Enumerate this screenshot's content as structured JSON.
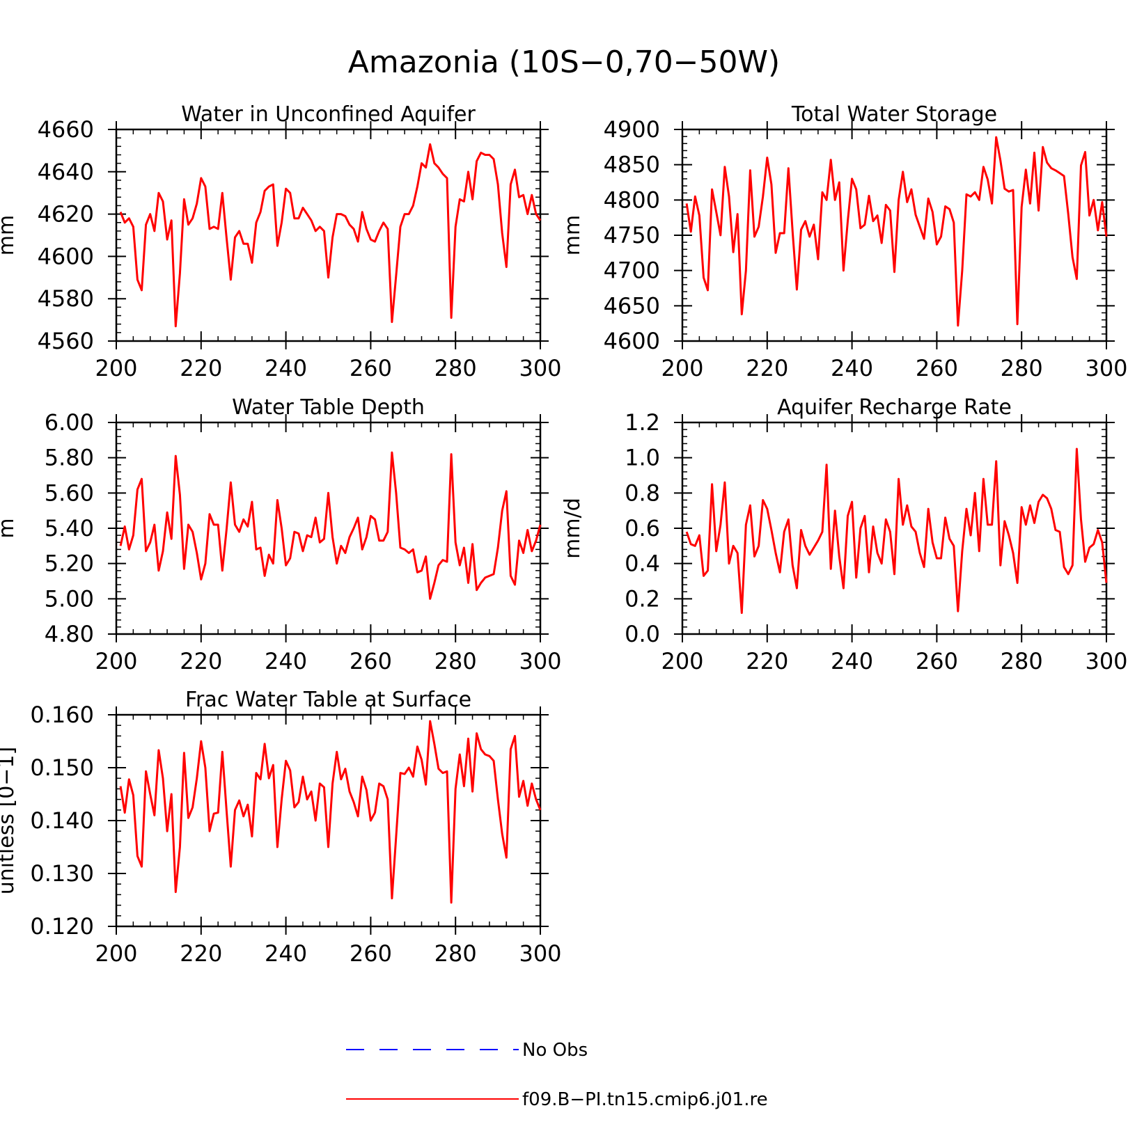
{
  "figure": {
    "title": "Amazonia (10S−0,70−50W)"
  },
  "legend": {
    "entries": [
      {
        "label": "No Obs",
        "color": "#0000ff",
        "style": "dashed"
      },
      {
        "label": "f09.B−PI.tn15.cmip6.j01.re",
        "color": "#ff0000",
        "style": "solid"
      }
    ]
  },
  "chart_data": [
    {
      "type": "line",
      "title": "Water in Unconfined Aquifer",
      "ylabel": "mm",
      "xlim": [
        200,
        300
      ],
      "ylim": [
        4560,
        4660
      ],
      "xticks": [
        200,
        220,
        240,
        260,
        280,
        300
      ],
      "yticks": [
        4560,
        4580,
        4600,
        4620,
        4640,
        4660
      ],
      "ytick_labels": [
        "4560",
        "4580",
        "4600",
        "4620",
        "4640",
        "4660"
      ],
      "series": [
        {
          "color": "#ff0000",
          "x_start": 201,
          "values": [
            4621,
            4616,
            4618,
            4614,
            4589,
            4584,
            4615,
            4620,
            4612,
            4630,
            4626,
            4608,
            4617,
            4567,
            4592,
            4627,
            4615,
            4618,
            4625,
            4637,
            4633,
            4613,
            4614,
            4613,
            4630,
            4609,
            4589,
            4609,
            4612,
            4606,
            4606,
            4597,
            4616,
            4621,
            4631,
            4633,
            4634,
            4605,
            4616,
            4632,
            4630,
            4618,
            4618,
            4623,
            4620,
            4617,
            4612,
            4614,
            4612,
            4590,
            4609,
            4620,
            4620,
            4619,
            4615,
            4613,
            4607,
            4621,
            4613,
            4608,
            4607,
            4612,
            4616,
            4613,
            4569,
            4591,
            4614,
            4620,
            4620,
            4624,
            4633,
            4644,
            4642,
            4653,
            4644,
            4642,
            4639,
            4637,
            4571,
            4614,
            4627,
            4626,
            4640,
            4627,
            4645,
            4649,
            4648,
            4648,
            4646,
            4634,
            4611,
            4595,
            4634,
            4641,
            4628,
            4629,
            4620,
            4629,
            4620,
            4617
          ]
        }
      ]
    },
    {
      "type": "line",
      "title": "Total Water Storage",
      "ylabel": "mm",
      "xlim": [
        200,
        300
      ],
      "ylim": [
        4600,
        4900
      ],
      "xticks": [
        200,
        220,
        240,
        260,
        280,
        300
      ],
      "yticks": [
        4600,
        4650,
        4700,
        4750,
        4800,
        4850,
        4900
      ],
      "ytick_labels": [
        "4600",
        "4650",
        "4700",
        "4750",
        "4800",
        "4850",
        "4900"
      ],
      "series": [
        {
          "color": "#ff0000",
          "x_start": 201,
          "values": [
            4795,
            4755,
            4805,
            4778,
            4690,
            4672,
            4815,
            4783,
            4750,
            4847,
            4805,
            4726,
            4780,
            4638,
            4700,
            4842,
            4748,
            4762,
            4805,
            4860,
            4822,
            4725,
            4753,
            4753,
            4845,
            4755,
            4673,
            4758,
            4770,
            4748,
            4765,
            4716,
            4811,
            4800,
            4857,
            4800,
            4825,
            4700,
            4770,
            4830,
            4815,
            4760,
            4765,
            4806,
            4770,
            4778,
            4739,
            4793,
            4785,
            4698,
            4800,
            4840,
            4797,
            4815,
            4779,
            4762,
            4745,
            4802,
            4783,
            4737,
            4748,
            4791,
            4787,
            4768,
            4622,
            4700,
            4808,
            4805,
            4811,
            4800,
            4847,
            4829,
            4795,
            4889,
            4856,
            4816,
            4812,
            4814,
            4624,
            4790,
            4843,
            4795,
            4867,
            4785,
            4875,
            4853,
            4845,
            4842,
            4838,
            4834,
            4780,
            4719,
            4688,
            4849,
            4868,
            4778,
            4800,
            4757,
            4797,
            4748
          ]
        }
      ]
    },
    {
      "type": "line",
      "title": "Water Table Depth",
      "ylabel": "m",
      "xlim": [
        200,
        300
      ],
      "ylim": [
        4.8,
        6.0
      ],
      "xticks": [
        200,
        220,
        240,
        260,
        280,
        300
      ],
      "yticks": [
        4.8,
        5.0,
        5.2,
        5.4,
        5.6,
        5.8,
        6.0
      ],
      "ytick_labels": [
        "4.80",
        "5.00",
        "5.20",
        "5.40",
        "5.60",
        "5.80",
        "6.00"
      ],
      "series": [
        {
          "color": "#ff0000",
          "x_start": 201,
          "values": [
            5.3,
            5.41,
            5.28,
            5.36,
            5.62,
            5.68,
            5.27,
            5.32,
            5.42,
            5.16,
            5.27,
            5.49,
            5.34,
            5.81,
            5.59,
            5.17,
            5.42,
            5.38,
            5.26,
            5.11,
            5.2,
            5.48,
            5.42,
            5.42,
            5.16,
            5.39,
            5.66,
            5.42,
            5.38,
            5.45,
            5.41,
            5.55,
            5.28,
            5.29,
            5.13,
            5.25,
            5.2,
            5.56,
            5.4,
            5.19,
            5.23,
            5.38,
            5.37,
            5.27,
            5.36,
            5.35,
            5.46,
            5.32,
            5.34,
            5.6,
            5.35,
            5.2,
            5.3,
            5.26,
            5.35,
            5.4,
            5.46,
            5.28,
            5.35,
            5.47,
            5.45,
            5.33,
            5.33,
            5.38,
            5.83,
            5.6,
            5.29,
            5.28,
            5.26,
            5.28,
            5.15,
            5.16,
            5.24,
            5.0,
            5.09,
            5.19,
            5.22,
            5.21,
            5.82,
            5.32,
            5.19,
            5.29,
            5.09,
            5.31,
            5.05,
            5.09,
            5.12,
            5.13,
            5.14,
            5.29,
            5.5,
            5.61,
            5.13,
            5.08,
            5.33,
            5.26,
            5.39,
            5.27,
            5.33,
            5.42
          ]
        }
      ]
    },
    {
      "type": "line",
      "title": "Aquifer Recharge Rate",
      "ylabel": "mm/d",
      "xlim": [
        200,
        300
      ],
      "ylim": [
        0.0,
        1.2
      ],
      "xticks": [
        200,
        220,
        240,
        260,
        280,
        300
      ],
      "yticks": [
        0.0,
        0.2,
        0.4,
        0.6,
        0.8,
        1.0,
        1.2
      ],
      "ytick_labels": [
        "0.0",
        "0.2",
        "0.4",
        "0.6",
        "0.8",
        "1.0",
        "1.2"
      ],
      "series": [
        {
          "color": "#ff0000",
          "x_start": 201,
          "values": [
            0.58,
            0.51,
            0.5,
            0.56,
            0.33,
            0.36,
            0.85,
            0.47,
            0.62,
            0.86,
            0.4,
            0.5,
            0.46,
            0.12,
            0.62,
            0.73,
            0.44,
            0.5,
            0.76,
            0.71,
            0.59,
            0.46,
            0.35,
            0.58,
            0.65,
            0.39,
            0.26,
            0.59,
            0.5,
            0.45,
            0.49,
            0.53,
            0.58,
            0.96,
            0.37,
            0.7,
            0.44,
            0.26,
            0.67,
            0.75,
            0.32,
            0.6,
            0.67,
            0.35,
            0.61,
            0.46,
            0.4,
            0.65,
            0.58,
            0.34,
            0.88,
            0.62,
            0.73,
            0.61,
            0.58,
            0.46,
            0.38,
            0.71,
            0.52,
            0.43,
            0.43,
            0.66,
            0.54,
            0.5,
            0.13,
            0.47,
            0.71,
            0.56,
            0.8,
            0.47,
            0.88,
            0.62,
            0.62,
            0.98,
            0.39,
            0.64,
            0.56,
            0.46,
            0.29,
            0.72,
            0.62,
            0.73,
            0.63,
            0.75,
            0.79,
            0.77,
            0.71,
            0.59,
            0.58,
            0.38,
            0.34,
            0.39,
            1.05,
            0.65,
            0.41,
            0.49,
            0.51,
            0.59,
            0.52,
            0.29
          ]
        }
      ]
    },
    {
      "type": "line",
      "title": "Frac Water Table at Surface",
      "ylabel": "unitless [0−1]",
      "xlim": [
        200,
        300
      ],
      "ylim": [
        0.12,
        0.16
      ],
      "xticks": [
        200,
        220,
        240,
        260,
        280,
        300
      ],
      "yticks": [
        0.12,
        0.13,
        0.14,
        0.15,
        0.16
      ],
      "ytick_labels": [
        "0.120",
        "0.130",
        "0.140",
        "0.150",
        "0.160"
      ],
      "series": [
        {
          "color": "#ff0000",
          "x_start": 201,
          "values": [
            0.1465,
            0.1415,
            0.1478,
            0.1448,
            0.1333,
            0.1313,
            0.1493,
            0.145,
            0.141,
            0.1533,
            0.148,
            0.138,
            0.145,
            0.1265,
            0.135,
            0.1528,
            0.1405,
            0.1425,
            0.148,
            0.155,
            0.15,
            0.138,
            0.1413,
            0.1415,
            0.153,
            0.142,
            0.1313,
            0.142,
            0.1438,
            0.1408,
            0.143,
            0.137,
            0.149,
            0.1478,
            0.1545,
            0.148,
            0.1505,
            0.135,
            0.144,
            0.1513,
            0.1495,
            0.1425,
            0.1435,
            0.1483,
            0.144,
            0.1455,
            0.14,
            0.147,
            0.1463,
            0.135,
            0.147,
            0.153,
            0.1478,
            0.1498,
            0.1455,
            0.1435,
            0.1408,
            0.1483,
            0.1458,
            0.14,
            0.1415,
            0.147,
            0.1465,
            0.144,
            0.1253,
            0.137,
            0.149,
            0.1488,
            0.15,
            0.1483,
            0.154,
            0.1515,
            0.1468,
            0.1588,
            0.1545,
            0.1498,
            0.149,
            0.1493,
            0.1245,
            0.146,
            0.1525,
            0.1465,
            0.1555,
            0.1455,
            0.1565,
            0.1535,
            0.1525,
            0.1522,
            0.1513,
            0.144,
            0.1375,
            0.133,
            0.1535,
            0.156,
            0.1445,
            0.1475,
            0.1428,
            0.147,
            0.144,
            0.142
          ]
        }
      ]
    }
  ]
}
